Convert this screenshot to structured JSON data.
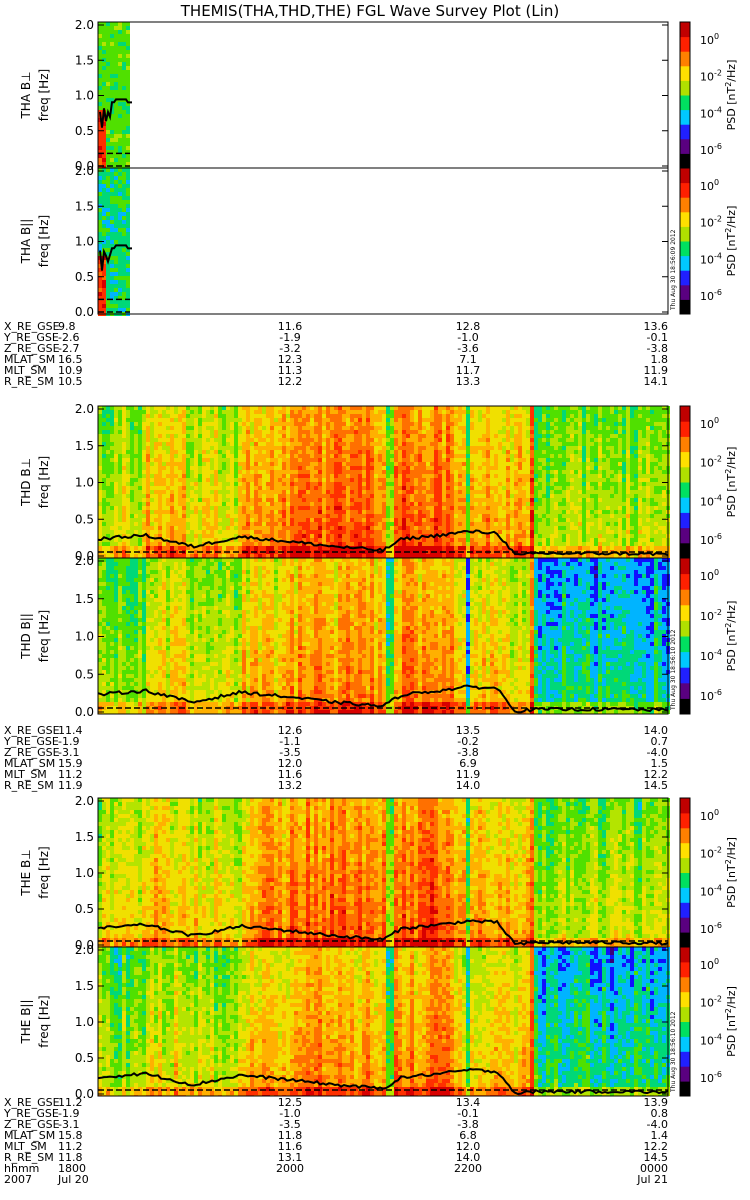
{
  "title": "THEMIS(THA,THD,THE) FGL Wave Survey Plot (Lin)",
  "colorbar": {
    "label": "PSD [nT²/Hz]",
    "label_base": "PSD [nT",
    "label_sup": "2",
    "label_tail": "/Hz]",
    "ticks": [
      {
        "base": "10",
        "exp": "0"
      },
      {
        "base": "10",
        "exp": "-2"
      },
      {
        "base": "10",
        "exp": "-4"
      },
      {
        "base": "10",
        "exp": "-6"
      }
    ],
    "colors": [
      "#000000",
      "#5a0080",
      "#2020ff",
      "#00c8ff",
      "#00e060",
      "#b0e000",
      "#ffe000",
      "#ff8000",
      "#ff2000",
      "#c00000"
    ]
  },
  "stamps": {
    "tha": "Thu Aug 30 18:56:09 2012",
    "thd": "Thu Aug 30 18:56:10 2012",
    "the": "Thu Aug 30 18:56:10 2012"
  },
  "panels": [
    {
      "id": "tha-bperp",
      "probe": "THA",
      "label": "THA B⊥",
      "ylabel": "freq [Hz]"
    },
    {
      "id": "tha-bpar",
      "probe": "THA",
      "label": "THA B||",
      "ylabel": "freq [Hz]"
    },
    {
      "id": "thd-bperp",
      "probe": "THD",
      "label": "THD B⊥",
      "ylabel": "freq [Hz]"
    },
    {
      "id": "thd-bpar",
      "probe": "THD",
      "label": "THD B||",
      "ylabel": "freq [Hz]"
    },
    {
      "id": "the-bperp",
      "probe": "THE",
      "label": "THE B⊥",
      "ylabel": "freq [Hz]"
    },
    {
      "id": "the-bpar",
      "probe": "THE",
      "label": "THE B||",
      "ylabel": "freq [Hz]"
    }
  ],
  "yticks": [
    "0.0",
    "0.5",
    "1.0",
    "1.5",
    "2.0"
  ],
  "ephemeris": {
    "tha": {
      "labels": [
        "X_RE_GSE",
        "Y_RE_GSE",
        "Z_RE_GSE",
        "MLAT_SM",
        "MLT_SM",
        "R_RE_SM"
      ],
      "columns": [
        [
          "9.8",
          "-2.6",
          "-2.7",
          "16.5",
          "10.9",
          "10.5"
        ],
        [
          "11.6",
          "-1.9",
          "-3.2",
          "12.3",
          "11.3",
          "12.2"
        ],
        [
          "12.8",
          "-1.0",
          "-3.6",
          "7.1",
          "11.7",
          "13.3"
        ],
        [
          "13.6",
          "-0.1",
          "-3.8",
          "1.8",
          "11.9",
          "14.1"
        ]
      ]
    },
    "thd": {
      "labels": [
        "X_RE_GSE",
        "Y_RE_GSE",
        "Z_RE_GSE",
        "MLAT_SM",
        "MLT_SM",
        "R_RE_SM"
      ],
      "columns": [
        [
          "11.4",
          "-1.9",
          "-3.1",
          "15.9",
          "11.2",
          "11.9"
        ],
        [
          "12.6",
          "-1.1",
          "-3.5",
          "12.0",
          "11.6",
          "13.2"
        ],
        [
          "13.5",
          "-0.2",
          "-3.8",
          "6.9",
          "11.9",
          "14.0"
        ],
        [
          "14.0",
          "0.7",
          "-4.0",
          "1.5",
          "12.2",
          "14.5"
        ]
      ]
    },
    "the": {
      "labels": [
        "X_RE_GSE",
        "Y_RE_GSE",
        "Z_RE_GSE",
        "MLAT_SM",
        "MLT_SM",
        "R_RE_SM",
        "hhmm",
        "2007"
      ],
      "columns": [
        [
          "11.2",
          "-1.9",
          "-3.1",
          "15.8",
          "11.2",
          "11.8",
          "1800",
          "Jul 20"
        ],
        [
          "12.5",
          "-1.0",
          "-3.5",
          "11.8",
          "11.6",
          "13.1",
          "2000",
          ""
        ],
        [
          "13.4",
          "-0.1",
          "-3.8",
          "6.8",
          "12.0",
          "14.0",
          "2200",
          ""
        ],
        [
          "13.9",
          "0.8",
          "-4.0",
          "1.4",
          "12.2",
          "14.5",
          "0000",
          "Jul 21"
        ]
      ]
    }
  },
  "chart_data": {
    "type": "heatmap",
    "title": "THEMIS(THA,THD,THE) FGL Wave Survey Plot (Lin)",
    "x_time_range": [
      "2007-07-20 18:00",
      "2007-07-21 00:00"
    ],
    "x_tick_labels": [
      "1800",
      "2000",
      "2200",
      "0000"
    ],
    "ylabel": "freq [Hz]",
    "ylim": [
      0,
      2.0
    ],
    "color_scale": "log",
    "color_range": [
      1e-06,
      10.0
    ],
    "colorbar_label": "PSD [nT²/Hz]",
    "series": [
      {
        "name": "THA B⊥",
        "coverage_hours": [
          0,
          0.3
        ],
        "dominant_psd": "1e-2"
      },
      {
        "name": "THA B||",
        "coverage_hours": [
          0,
          0.3
        ],
        "dominant_psd": "1e-4"
      },
      {
        "name": "THD B⊥",
        "coverage_hours": [
          0,
          6
        ],
        "dominant_psd": "1e-1"
      },
      {
        "name": "THD B||",
        "coverage_hours": [
          0,
          6
        ],
        "dominant_psd": "1e-2"
      },
      {
        "name": "THE B⊥",
        "coverage_hours": [
          0,
          6
        ],
        "dominant_psd": "1e-1"
      },
      {
        "name": "THE B||",
        "coverage_hours": [
          0,
          6
        ],
        "dominant_psd": "1e-2"
      }
    ],
    "gyrofrequency_line_thd": {
      "hours": [
        0,
        0.5,
        1,
        1.5,
        2,
        2.5,
        3,
        3.2,
        3.6,
        3.9,
        4.2,
        4.4,
        4.6,
        5,
        5.5,
        6
      ],
      "freq_hz": [
        0.25,
        0.3,
        0.15,
        0.28,
        0.22,
        0.15,
        0.1,
        0.25,
        0.3,
        0.35,
        0.33,
        0.03,
        0.06,
        0.06,
        0.06,
        0.05
      ]
    }
  }
}
